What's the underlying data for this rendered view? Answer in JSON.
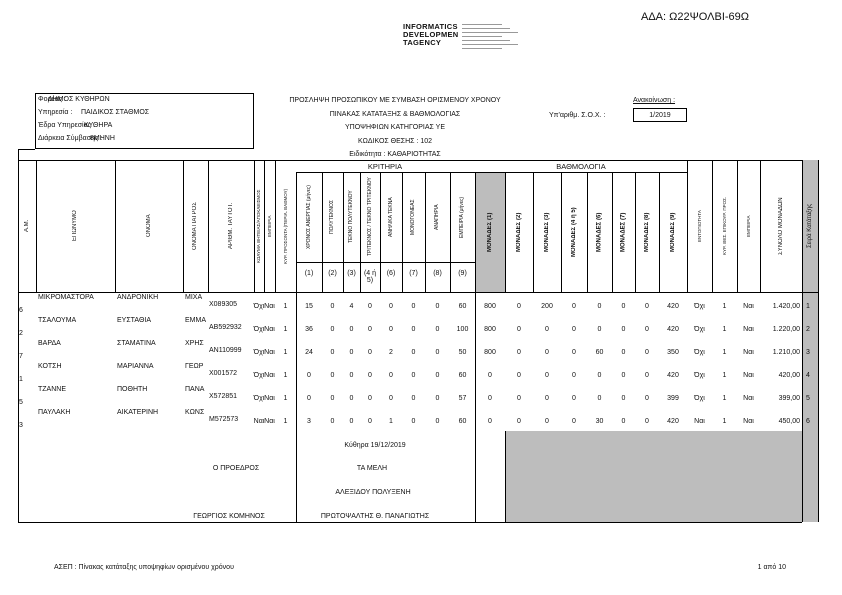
{
  "header": {
    "ada": "ΑΔΑ: Ω22ΨΟΛΒΙ-69Ω",
    "logo": [
      "INFORMATICS",
      "DEVELOPMEN",
      "TAGENCY"
    ],
    "agency": [
      {
        "label": "Φορέας :",
        "value": "ΔΗΜΟΣ ΚΥΘΗΡΩΝ"
      },
      {
        "label": "Υπηρεσία :",
        "value": "ΠΑΙΔΙΚΟΣ ΣΤΑΘΜΟΣ"
      },
      {
        "label": "Έδρα Υπηρεσίας :",
        "value": "ΚΥΘΗΡΑ"
      },
      {
        "label": "Διάρκεια Σύμβασης :",
        "value": "8ΜΗΝΗ"
      }
    ],
    "titles": [
      "ΠΡΟΣΛΗΨΗ ΠΡΟΣΩΠΙΚΟΥ ΜΕ ΣΥΜΒΑΣΗ ΟΡΙΣΜΕΝΟΥ ΧΡΟΝΟΥ",
      "ΠΙΝΑΚΑΣ ΚΑΤΑΤΑΞΗΣ & ΒΑΘΜΟΛΟΓΙΑΣ",
      "ΥΠΟΨΗΦΙΩΝ ΚΑΤΗΓΟΡΙΑΣ ΥΕ",
      "ΚΩΔΙΚΟΣ ΘΕΣΗΣ : 102",
      "Ειδικότητα : ΚΑΘΑΡΙΟΤΗΤΑΣ"
    ],
    "announcement_label": "Ανακοίνωση :",
    "protocol_label": "Υπ'αριθμ. Σ.Ο.Χ. :",
    "protocol_value": "1/2019"
  },
  "table": {
    "criteria_group": "ΚΡΙΤΗΡΙΑ",
    "score_group": "ΒΑΘΜΟΛΟΓΙΑ",
    "columns": [
      {
        "label": "Α.Μ."
      },
      {
        "label": "ΕΠΩΝΥΜΟ"
      },
      {
        "label": "ΟΝΟΜΑ"
      },
      {
        "label": "ΟΝΟΜΑ ΠΑΤΡΟΣ"
      },
      {
        "label": "ΑΡΙΘΜ. ΤΑΥΤΟΤ."
      },
      {
        "label": "ΚΩΛΥΜΑ ΘΗΤΕΙΑΣ/ΑΠΟΚΛΕΙΣΜΟΣ"
      },
      {
        "label": "ΕΜΠΕΙΡΙΑ"
      },
      {
        "label": "ΚΥΡ. ΠΡΟΣΟΝΤΑ (ΠΕΡΙΛ. ΒΑΘΜΟΥ)"
      },
      {
        "label": "ΧΡΟΝΟΣ ΑΝΕΡΓΙΑΣ (μήνες)",
        "num": "(1)"
      },
      {
        "label": "ΠΟΛΥΤΕΚΝΟΣ",
        "num": "(2)"
      },
      {
        "label": "ΤΕΚΝΟ ΠΟΛΥΤΕΚΝΟΥ",
        "num": "(3)"
      },
      {
        "label": "ΤΡΙΤΕΚΝΟΣ / ΤΕΚΝΟ ΤΡΙΤΕΚΝΟΥ",
        "num": "(4 ή 5)"
      },
      {
        "label": "ΑΝΗΛΙΚΑ ΤΕΚΝΑ",
        "num": "(6)"
      },
      {
        "label": "ΜΟΝΟΓΟΝΕΑΣ",
        "num": "(7)"
      },
      {
        "label": "ΑΝΑΠΗΡΙΑ",
        "num": "(8)"
      },
      {
        "label": "ΕΜΠΕΙΡΙΑ (μήνες)",
        "num": "(9)"
      },
      {
        "label": "ΜΟΝΑΔΕΣ",
        "num": "(1)"
      },
      {
        "label": "ΜΟΝΑΔΕΣ",
        "num": "(2)"
      },
      {
        "label": "ΜΟΝΑΔΕΣ",
        "num": "(3)"
      },
      {
        "label": "ΜΟΝΑΔΕΣ",
        "num": "(4 ή 5)"
      },
      {
        "label": "ΜΟΝΑΔΕΣ",
        "num": "(6)"
      },
      {
        "label": "ΜΟΝΑΔΕΣ",
        "num": "(7)"
      },
      {
        "label": "ΜΟΝΑΔΕΣ",
        "num": "(8)"
      },
      {
        "label": "ΜΟΝΑΔΕΣ",
        "num": "(9)"
      },
      {
        "label": "ΕΝΤΟΠΙΟΤΗΤΑ"
      },
      {
        "label": "ΚΥΡ. ΘΕΣ. ΕΠΙΚΟΥΡ. ΠΡΟΣ."
      },
      {
        "label": "ΕΜΠΕΙΡΙΑ"
      },
      {
        "label": "ΣΥΝΟΛΟ ΜΟΝΑΔΩΝ"
      },
      {
        "label": "Σειρά Κατάταξης"
      }
    ],
    "rows": [
      [
        "6",
        "ΜΙΚΡΟΜΑΣΤΟΡΑ",
        "ΑΝΔΡΟΝΙΚΗ",
        "ΜΙΧΑ",
        "Χ089305",
        "Όχι",
        "Ναι",
        "1",
        "15",
        "0",
        "4",
        "0",
        "0",
        "0",
        "0",
        "60",
        "800",
        "0",
        "200",
        "0",
        "0",
        "0",
        "0",
        "420",
        "Όχι",
        "1",
        "Ναι",
        "1.420,00",
        "1"
      ],
      [
        "2",
        "ΤΣΑΛΟΥΜΑ",
        "ΕΥΣΤΑΘΙΑ",
        "ΕΜΜΑ",
        "ΑΒ592932",
        "Όχι",
        "Ναι",
        "1",
        "36",
        "0",
        "0",
        "0",
        "0",
        "0",
        "0",
        "100",
        "800",
        "0",
        "0",
        "0",
        "0",
        "0",
        "0",
        "420",
        "Όχι",
        "1",
        "Ναι",
        "1.220,00",
        "2"
      ],
      [
        "7",
        "ΒΑΡΔΑ",
        "ΣΤΑΜΑΤΙΝΑ",
        "ΧΡΗΣ",
        "ΑΝ110999",
        "Όχι",
        "Ναι",
        "1",
        "24",
        "0",
        "0",
        "0",
        "2",
        "0",
        "0",
        "50",
        "800",
        "0",
        "0",
        "0",
        "60",
        "0",
        "0",
        "350",
        "Όχι",
        "1",
        "Ναι",
        "1.210,00",
        "3"
      ],
      [
        "1",
        "ΚΟΤΣΗ",
        "ΜΑΡΙΑΝΝΑ",
        "ΓΕΩΡ",
        "Χ001572",
        "Όχι",
        "Ναι",
        "1",
        "0",
        "0",
        "0",
        "0",
        "0",
        "0",
        "0",
        "60",
        "0",
        "0",
        "0",
        "0",
        "0",
        "0",
        "0",
        "420",
        "Όχι",
        "1",
        "Ναι",
        "420,00",
        "4"
      ],
      [
        "5",
        "ΤΖΑΝΝΕ",
        "ΠΟΘΗΤΗ",
        "ΠΑΝΑ",
        "Χ572851",
        "Όχι",
        "Ναι",
        "1",
        "0",
        "0",
        "0",
        "0",
        "0",
        "0",
        "0",
        "57",
        "0",
        "0",
        "0",
        "0",
        "0",
        "0",
        "0",
        "399",
        "Όχι",
        "1",
        "Ναι",
        "399,00",
        "5"
      ],
      [
        "3",
        "ΠΑΥΛΑΚΗ",
        "ΑΙΚΑΤΕΡΙΝΗ",
        "ΚΩΝΣ",
        "Μ572573",
        "Ναι",
        "Ναι",
        "1",
        "3",
        "0",
        "0",
        "0",
        "1",
        "0",
        "0",
        "60",
        "0",
        "0",
        "0",
        "0",
        "30",
        "0",
        "0",
        "420",
        "Ναι",
        "1",
        "Ναι",
        "450,00",
        "6"
      ]
    ]
  },
  "signatures": {
    "place_date": "Κύθηρα 19/12/2019",
    "president_title": "Ο ΠΡΟΕΔΡΟΣ",
    "members_title": "ΤΑ ΜΕΛΗ",
    "member_1": "ΑΛΕΞΙΔΟΥ ΠΟΛΥΞΕΝΗ",
    "president": "ΓΕΩΡΓΙΟΣ ΚΟΜΗΝΟΣ",
    "member_2": "ΠΡΩΤΟΨΑΛΤΗΣ Θ. ΠΑΝΑΓΙΩΤΗΣ"
  },
  "footer": {
    "source": "ΑΣΕΠ : Πίνακας κατάταξης υποψηφίων ορισμένου χρόνου",
    "page": "1 από 10"
  }
}
